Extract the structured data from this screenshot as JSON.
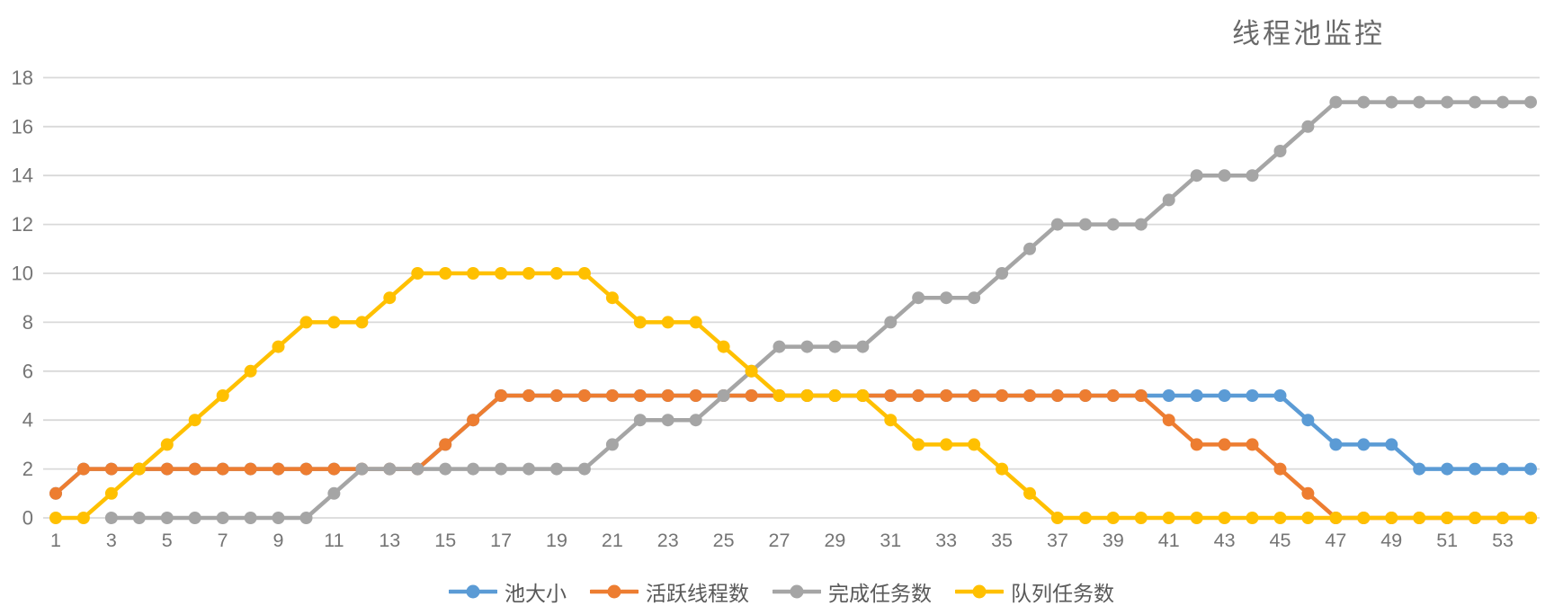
{
  "chart_data": {
    "type": "line",
    "title": "线程池监控",
    "x": [
      1,
      2,
      3,
      4,
      5,
      6,
      7,
      8,
      9,
      10,
      11,
      12,
      13,
      14,
      15,
      16,
      17,
      18,
      19,
      20,
      21,
      22,
      23,
      24,
      25,
      26,
      27,
      28,
      29,
      30,
      31,
      32,
      33,
      34,
      35,
      36,
      37,
      38,
      39,
      40,
      41,
      42,
      43,
      44,
      45,
      46,
      47,
      48,
      49,
      50,
      51,
      52,
      53,
      54
    ],
    "x_tick_labels": [
      "1",
      "3",
      "5",
      "7",
      "9",
      "11",
      "13",
      "15",
      "17",
      "19",
      "21",
      "23",
      "25",
      "27",
      "29",
      "31",
      "33",
      "35",
      "37",
      "39",
      "41",
      "43",
      "45",
      "47",
      "49",
      "51",
      "53"
    ],
    "y_ticks": [
      0,
      2,
      4,
      6,
      8,
      10,
      12,
      14,
      16,
      18
    ],
    "ylim": [
      0,
      18
    ],
    "grid": "horizontal",
    "legend_position": "bottom",
    "background_color": "#ffffff",
    "gridline_color": "#d9d9d9",
    "tick_color": "#757575",
    "title_color": "#696969",
    "legend_text_color": "#595959",
    "series": [
      {
        "id": "pool-size",
        "name": "池大小",
        "color": "#5B9BD5",
        "values": [
          1,
          2,
          2,
          2,
          2,
          2,
          2,
          2,
          2,
          2,
          2,
          2,
          2,
          2,
          3,
          4,
          5,
          5,
          5,
          5,
          5,
          5,
          5,
          5,
          5,
          5,
          5,
          5,
          5,
          5,
          5,
          5,
          5,
          5,
          5,
          5,
          5,
          5,
          5,
          5,
          5,
          5,
          5,
          5,
          5,
          4,
          3,
          3,
          3,
          2,
          2,
          2,
          2,
          2
        ]
      },
      {
        "id": "active-threads",
        "name": "活跃线程数",
        "color": "#ED7D31",
        "values": [
          1,
          2,
          2,
          2,
          2,
          2,
          2,
          2,
          2,
          2,
          2,
          2,
          2,
          2,
          3,
          4,
          5,
          5,
          5,
          5,
          5,
          5,
          5,
          5,
          5,
          5,
          5,
          5,
          5,
          5,
          5,
          5,
          5,
          5,
          5,
          5,
          5,
          5,
          5,
          5,
          4,
          3,
          3,
          3,
          2,
          1,
          0,
          0,
          0,
          0,
          0,
          0,
          0,
          0
        ]
      },
      {
        "id": "completed-tasks",
        "name": "完成任务数",
        "color": "#A5A5A5",
        "values": [
          null,
          null,
          0,
          0,
          0,
          0,
          0,
          0,
          0,
          0,
          1,
          2,
          2,
          2,
          2,
          2,
          2,
          2,
          2,
          2,
          3,
          4,
          4,
          4,
          5,
          6,
          7,
          7,
          7,
          7,
          8,
          9,
          9,
          9,
          10,
          11,
          12,
          12,
          12,
          12,
          13,
          14,
          14,
          14,
          15,
          16,
          17,
          17,
          17,
          17,
          17,
          17,
          17,
          17
        ]
      },
      {
        "id": "queued-tasks",
        "name": "队列任务数",
        "color": "#FFC000",
        "values": [
          0,
          0,
          1,
          2,
          3,
          4,
          5,
          6,
          7,
          8,
          8,
          8,
          9,
          10,
          10,
          10,
          10,
          10,
          10,
          10,
          9,
          8,
          8,
          8,
          7,
          6,
          5,
          5,
          5,
          5,
          4,
          3,
          3,
          3,
          2,
          1,
          0,
          0,
          0,
          0,
          0,
          0,
          0,
          0,
          0,
          0,
          0,
          0,
          0,
          0,
          0,
          0,
          0,
          0
        ]
      }
    ]
  }
}
